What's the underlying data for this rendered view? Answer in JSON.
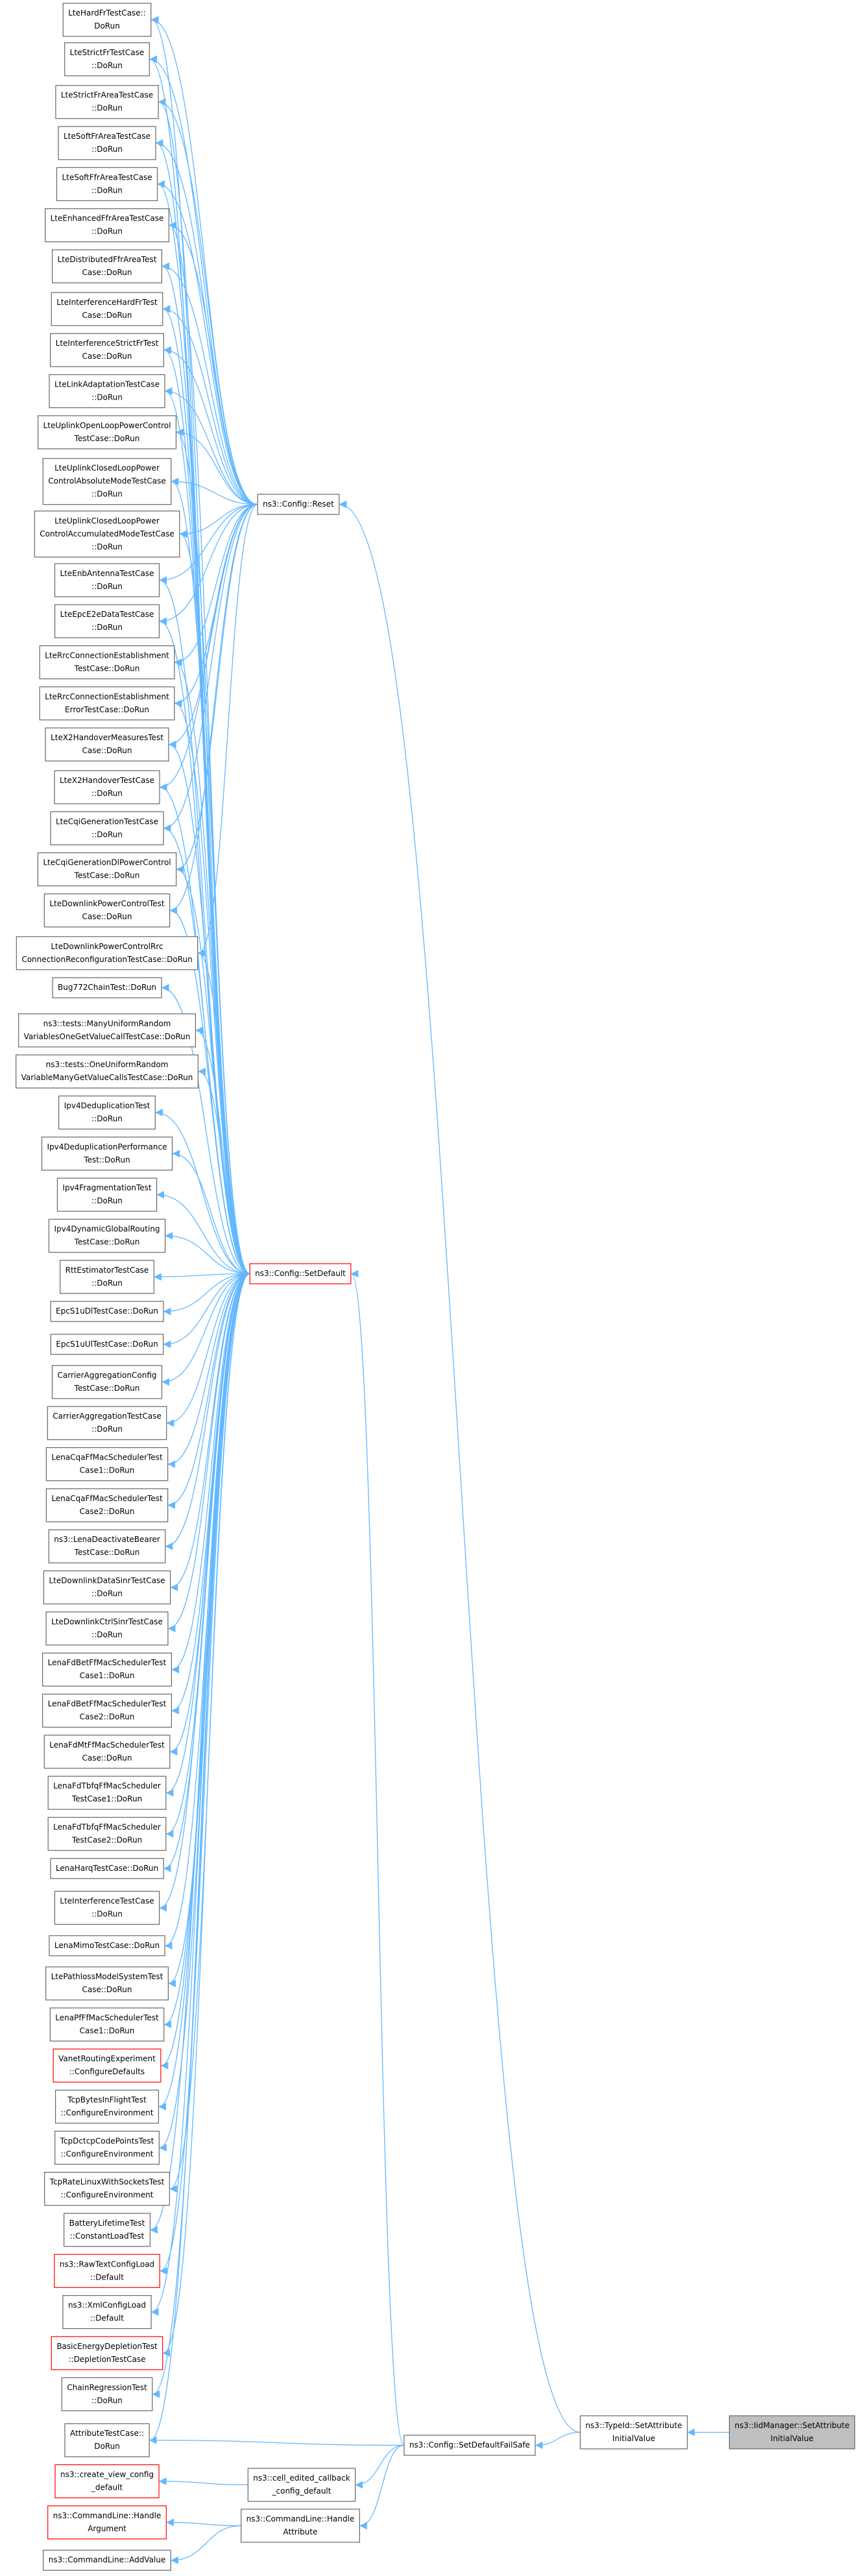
{
  "nodes": [
    {
      "label": [
        "LteHardFrTestCase::",
        "DoRun"
      ]
    },
    {
      "label": [
        "LteStrictFrTestCase",
        "::DoRun"
      ]
    },
    {
      "label": [
        "LteStrictFrAreaTestCase",
        "::DoRun"
      ]
    },
    {
      "label": [
        "LteSoftFrAreaTestCase",
        "::DoRun"
      ]
    },
    {
      "label": [
        "LteSoftFfrAreaTestCase",
        "::DoRun"
      ]
    },
    {
      "label": [
        "LteEnhancedFfrAreaTestCase",
        "::DoRun"
      ]
    },
    {
      "label": [
        "LteDistributedFfrAreaTest",
        "Case::DoRun"
      ]
    },
    {
      "label": [
        "LteInterferenceHardFrTest",
        "Case::DoRun"
      ]
    },
    {
      "label": [
        "LteInterferenceStrictFrTest",
        "Case::DoRun"
      ]
    },
    {
      "label": [
        "LteLinkAdaptationTestCase",
        "::DoRun"
      ]
    },
    {
      "label": [
        "LteUplinkOpenLoopPowerControl",
        "TestCase::DoRun"
      ]
    },
    {
      "label": [
        "LteUplinkClosedLoopPower",
        "ControlAbsoluteModeTestCase",
        "::DoRun"
      ]
    },
    {
      "label": [
        "LteUplinkClosedLoopPower",
        "ControlAccumulatedModeTestCase",
        "::DoRun"
      ]
    },
    {
      "label": [
        "LteEnbAntennaTestCase",
        "::DoRun"
      ]
    },
    {
      "label": [
        "LteEpcE2eDataTestCase",
        "::DoRun"
      ]
    },
    {
      "label": [
        "LteRrcConnectionEstablishment",
        "TestCase::DoRun"
      ]
    },
    {
      "label": [
        "LteRrcConnectionEstablishment",
        "ErrorTestCase::DoRun"
      ]
    },
    {
      "label": [
        "LteX2HandoverMeasuresTest",
        "Case::DoRun"
      ]
    },
    {
      "label": [
        "LteX2HandoverTestCase",
        "::DoRun"
      ]
    },
    {
      "label": [
        "LteCqiGenerationTestCase",
        "::DoRun"
      ]
    },
    {
      "label": [
        "LteCqiGenerationDlPowerControl",
        "TestCase::DoRun"
      ]
    },
    {
      "label": [
        "LteDownlinkPowerControlTest",
        "Case::DoRun"
      ]
    },
    {
      "label": [
        "LteDownlinkPowerControlRrc",
        "ConnectionReconfigurationTestCase::DoRun"
      ]
    },
    {
      "label": [
        "Bug772ChainTest::DoRun"
      ]
    },
    {
      "label": [
        "ns3::tests::ManyUniformRandom",
        "VariablesOneGetValueCallTestCase::DoRun"
      ]
    },
    {
      "label": [
        "ns3::tests::OneUniformRandom",
        "VariableManyGetValueCallsTestCase::DoRun"
      ]
    },
    {
      "label": [
        "Ipv4DeduplicationTest",
        "::DoRun"
      ]
    },
    {
      "label": [
        "Ipv4DeduplicationPerformance",
        "Test::DoRun"
      ]
    },
    {
      "label": [
        "Ipv4FragmentationTest",
        "::DoRun"
      ]
    },
    {
      "label": [
        "Ipv4DynamicGlobalRouting",
        "TestCase::DoRun"
      ]
    },
    {
      "label": [
        "RttEstimatorTestCase",
        "::DoRun"
      ]
    },
    {
      "label": [
        "EpcS1uDlTestCase::DoRun"
      ]
    },
    {
      "label": [
        "EpcS1uUlTestCase::DoRun"
      ]
    },
    {
      "label": [
        "CarrierAggregationConfig",
        "TestCase::DoRun"
      ]
    },
    {
      "label": [
        "CarrierAggregationTestCase",
        "::DoRun"
      ]
    },
    {
      "label": [
        "LenaCqaFfMacSchedulerTest",
        "Case1::DoRun"
      ]
    },
    {
      "label": [
        "LenaCqaFfMacSchedulerTest",
        "Case2::DoRun"
      ]
    },
    {
      "label": [
        "ns3::LenaDeactivateBearer",
        "TestCase::DoRun"
      ]
    },
    {
      "label": [
        "LteDownlinkDataSinrTestCase",
        "::DoRun"
      ]
    },
    {
      "label": [
        "LteDownlinkCtrlSinrTestCase",
        "::DoRun"
      ]
    },
    {
      "label": [
        "LenaFdBetFfMacSchedulerTest",
        "Case1::DoRun"
      ]
    },
    {
      "label": [
        "LenaFdBetFfMacSchedulerTest",
        "Case2::DoRun"
      ]
    },
    {
      "label": [
        "LenaFdMtFfMacSchedulerTest",
        "Case::DoRun"
      ]
    },
    {
      "label": [
        "LenaFdTbfqFfMacScheduler",
        "TestCase1::DoRun"
      ]
    },
    {
      "label": [
        "LenaFdTbfqFfMacScheduler",
        "TestCase2::DoRun"
      ]
    },
    {
      "label": [
        "LenaHarqTestCase::DoRun"
      ]
    },
    {
      "label": [
        "LteInterferenceTestCase",
        "::DoRun"
      ]
    },
    {
      "label": [
        "LenaMimoTestCase::DoRun"
      ]
    },
    {
      "label": [
        "LtePathlossModelSystemTest",
        "Case::DoRun"
      ]
    },
    {
      "label": [
        "LenaPfFfMacSchedulerTest",
        "Case1::DoRun"
      ]
    },
    {
      "label": [
        "VanetRoutingExperiment",
        "::ConfigureDefaults"
      ],
      "border": "#ff0000"
    },
    {
      "label": [
        "TcpBytesInFlightTest",
        "::ConfigureEnvironment"
      ]
    },
    {
      "label": [
        "TcpDctcpCodePointsTest",
        "::ConfigureEnvironment"
      ]
    },
    {
      "label": [
        "TcpRateLinuxWithSocketsTest",
        "::ConfigureEnvironment"
      ]
    },
    {
      "label": [
        "BatteryLifetimeTest",
        "::ConstantLoadTest"
      ]
    },
    {
      "label": [
        "ns3::RawTextConfigLoad",
        "::Default"
      ],
      "border": "#ff0000"
    },
    {
      "label": [
        "ns3::XmlConfigLoad",
        "::Default"
      ]
    },
    {
      "label": [
        "BasicEnergyDepletionTest",
        "::DepletionTestCase"
      ],
      "border": "#ff0000"
    },
    {
      "label": [
        "ChainRegressionTest",
        "::DoRun"
      ]
    },
    {
      "label": [
        "AttributeTestCase::",
        "DoRun"
      ]
    },
    {
      "label": [
        "ns3::create_view_config",
        "_default"
      ],
      "border": "#ff0000"
    },
    {
      "label": [
        "ns3::CommandLine::Handle",
        "Argument"
      ],
      "border": "#ff0000"
    },
    {
      "label": [
        "ns3::CommandLine::AddValue"
      ]
    },
    {
      "label": [
        "ns3::Config::Reset"
      ]
    },
    {
      "label": [
        "ns3::Config::SetDefault"
      ],
      "border": "#ff0000"
    },
    {
      "label": [
        "ns3::Config::SetDefaultFailSafe"
      ]
    },
    {
      "label": [
        "ns3::cell_edited_callback",
        "_config_default"
      ]
    },
    {
      "label": [
        "ns3::CommandLine::Handle",
        "Attribute"
      ]
    },
    {
      "label": [
        "ns3::TypeId::SetAttribute",
        "InitialValue"
      ]
    },
    {
      "label": [
        "ns3::IidManager::SetAttribute",
        "InitialValue"
      ],
      "fill": "#bfbfbf"
    }
  ]
}
